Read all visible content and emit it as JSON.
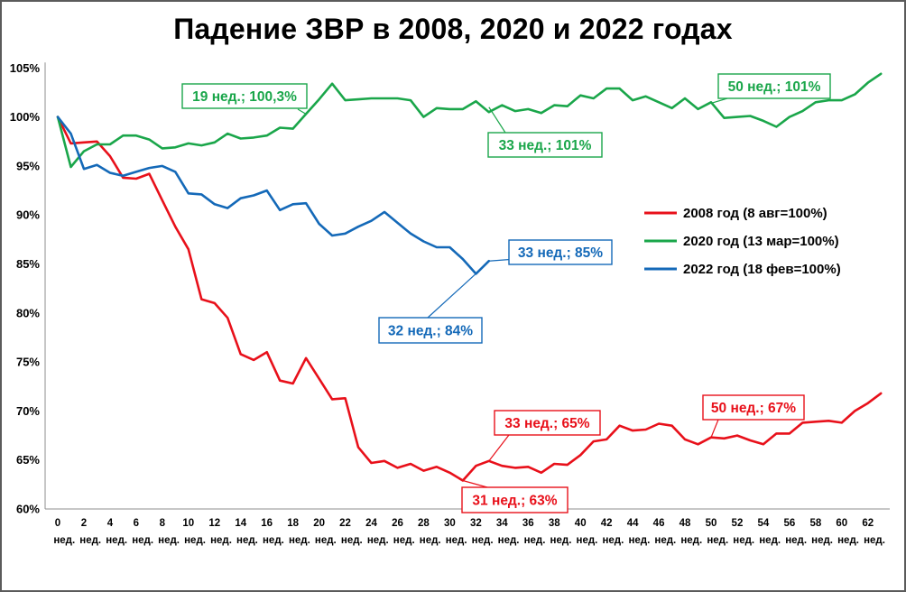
{
  "chart_data": {
    "type": "line",
    "title": "Падение ЗВР в 2008, 2020 и 2022 годах",
    "xlabel": "",
    "ylabel": "",
    "xlim": [
      0,
      63
    ],
    "ylim": [
      60,
      105
    ],
    "grid": false,
    "yticks": [
      "60%",
      "65%",
      "70%",
      "75%",
      "80%",
      "85%",
      "90%",
      "95%",
      "100%",
      "105%"
    ],
    "ytick_values": [
      60,
      65,
      70,
      75,
      80,
      85,
      90,
      95,
      100,
      105
    ],
    "xtick_values": [
      0,
      2,
      4,
      6,
      8,
      10,
      12,
      14,
      16,
      18,
      20,
      22,
      24,
      26,
      28,
      30,
      32,
      34,
      36,
      38,
      40,
      42,
      44,
      46,
      48,
      50,
      52,
      54,
      56,
      58,
      60,
      62
    ],
    "xtick_labels": [
      "0",
      "2",
      "4",
      "6",
      "8",
      "10",
      "12",
      "14",
      "16",
      "18",
      "20",
      "22",
      "24",
      "26",
      "28",
      "30",
      "32",
      "34",
      "36",
      "38",
      "40",
      "42",
      "44",
      "46",
      "48",
      "50",
      "52",
      "54",
      "56",
      "58",
      "60",
      "62"
    ],
    "xtick_unit": "нед.",
    "legend_position": "right",
    "series": [
      {
        "name": "2008 год (8 авг=100%)",
        "color": "#e8101a",
        "x": [
          0,
          1,
          2,
          3,
          4,
          5,
          6,
          7,
          8,
          9,
          10,
          11,
          12,
          13,
          14,
          15,
          16,
          17,
          18,
          19,
          20,
          21,
          22,
          23,
          24,
          25,
          26,
          27,
          28,
          29,
          30,
          31,
          32,
          33,
          34,
          35,
          36,
          37,
          38,
          39,
          40,
          41,
          42,
          43,
          44,
          45,
          46,
          47,
          48,
          49,
          50,
          51,
          52,
          53,
          54,
          55,
          56,
          57,
          58,
          59,
          60,
          61,
          62,
          63
        ],
        "values": [
          100,
          97.3,
          97.4,
          97.5,
          96.0,
          93.8,
          93.7,
          94.2,
          91.5,
          88.8,
          86.5,
          81.4,
          81.0,
          79.5,
          75.8,
          75.2,
          76.0,
          73.1,
          72.8,
          75.4,
          73.3,
          71.2,
          71.3,
          66.3,
          64.7,
          64.9,
          64.2,
          64.6,
          63.9,
          64.3,
          63.7,
          62.9,
          64.4,
          64.9,
          64.4,
          64.2,
          64.3,
          63.7,
          64.6,
          64.5,
          65.5,
          66.9,
          67.1,
          68.5,
          68.0,
          68.1,
          68.7,
          68.5,
          67.1,
          66.6,
          67.3,
          67.2,
          67.5,
          67.0,
          66.6,
          67.7,
          67.7,
          68.8,
          68.9,
          69.0,
          68.8,
          70.0,
          70.8,
          71.8
        ]
      },
      {
        "name": "2020 год (13 мар=100%)",
        "color": "#1aa64a",
        "x": [
          0,
          1,
          2,
          3,
          4,
          5,
          6,
          7,
          8,
          9,
          10,
          11,
          12,
          13,
          14,
          15,
          16,
          17,
          18,
          19,
          20,
          21,
          22,
          23,
          24,
          25,
          26,
          27,
          28,
          29,
          30,
          31,
          32,
          33,
          34,
          35,
          36,
          37,
          38,
          39,
          40,
          41,
          42,
          43,
          44,
          45,
          46,
          47,
          48,
          49,
          50,
          51,
          52,
          53,
          54,
          55,
          56,
          57,
          58,
          59,
          60,
          61,
          62,
          63
        ],
        "values": [
          100,
          94.9,
          96.5,
          97.2,
          97.2,
          98.1,
          98.1,
          97.7,
          96.8,
          96.9,
          97.3,
          97.1,
          97.4,
          98.3,
          97.8,
          97.9,
          98.1,
          98.9,
          98.8,
          100.3,
          101.8,
          103.4,
          101.7,
          101.8,
          101.9,
          101.9,
          101.9,
          101.7,
          100.0,
          100.9,
          100.8,
          100.8,
          101.6,
          100.5,
          101.2,
          100.6,
          100.8,
          100.4,
          101.2,
          101.1,
          102.2,
          101.9,
          102.9,
          102.9,
          101.7,
          102.1,
          101.5,
          100.9,
          101.9,
          100.8,
          101.5,
          99.9,
          100.0,
          100.1,
          99.6,
          99.0,
          100.0,
          100.6,
          101.5,
          101.7,
          101.7,
          102.3,
          103.5,
          104.4
        ]
      },
      {
        "name": "2022 год (18 фев=100%)",
        "color": "#1469b8",
        "x": [
          0,
          1,
          2,
          3,
          4,
          5,
          6,
          7,
          8,
          9,
          10,
          11,
          12,
          13,
          14,
          15,
          16,
          17,
          18,
          19,
          20,
          21,
          22,
          23,
          24,
          25,
          26,
          27,
          28,
          29,
          30,
          31,
          32,
          33
        ],
        "values": [
          100,
          98.3,
          94.7,
          95.1,
          94.3,
          94.0,
          94.4,
          94.8,
          95.0,
          94.4,
          92.2,
          92.1,
          91.1,
          90.7,
          91.7,
          92.0,
          92.5,
          90.5,
          91.1,
          91.2,
          89.1,
          87.9,
          88.1,
          88.8,
          89.4,
          90.3,
          89.2,
          88.1,
          87.3,
          86.7,
          86.7,
          85.5,
          84.0,
          85.3
        ]
      }
    ],
    "annotations": [
      {
        "text": "19 нед.; 100,3%",
        "x": 19,
        "y": 100.3,
        "color": "#1aa64a"
      },
      {
        "text": "33 нед.; 101%",
        "x": 33,
        "y": 101.0,
        "color": "#1aa64a"
      },
      {
        "text": "50 нед.; 101%",
        "x": 50,
        "y": 101.4,
        "color": "#1aa64a"
      },
      {
        "text": "33 нед.; 85%",
        "x": 33,
        "y": 85.3,
        "color": "#1469b8"
      },
      {
        "text": "32 нед.; 84%",
        "x": 32,
        "y": 84.0,
        "color": "#1469b8"
      },
      {
        "text": "33 нед.; 65%",
        "x": 33,
        "y": 64.9,
        "color": "#e8101a"
      },
      {
        "text": "31 нед.; 63%",
        "x": 31,
        "y": 62.9,
        "color": "#e8101a"
      },
      {
        "text": "50 нед.; 67%",
        "x": 50,
        "y": 67.3,
        "color": "#e8101a"
      }
    ]
  }
}
